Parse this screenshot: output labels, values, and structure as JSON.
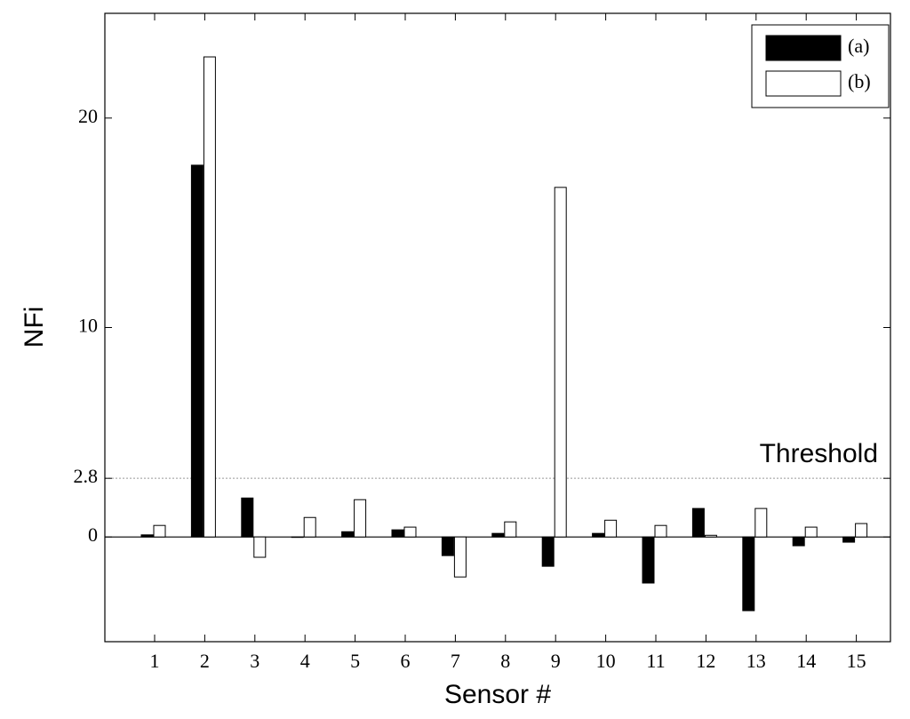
{
  "chart_data": {
    "type": "bar",
    "x_label": "Sensor #",
    "y_label": "NFi",
    "categories": [
      "1",
      "2",
      "3",
      "4",
      "5",
      "6",
      "7",
      "8",
      "9",
      "10",
      "11",
      "12",
      "13",
      "14",
      "15"
    ],
    "series": [
      {
        "name": "(a)",
        "color": "#000000",
        "values": [
          0.1,
          17.75,
          1.86,
          0,
          0.25,
          0.34,
          -0.89,
          0.17,
          -1.4,
          0.17,
          -2.2,
          1.36,
          -3.52,
          -0.42,
          -0.25
        ]
      },
      {
        "name": "(b)",
        "color": "#ffffff",
        "values": [
          0.55,
          22.92,
          -0.97,
          0.93,
          1.78,
          0.47,
          -1.91,
          0.72,
          16.69,
          0.8,
          0.55,
          0.08,
          1.36,
          0.47,
          0.64
        ]
      }
    ],
    "ylim": [
      -5,
      25
    ],
    "yticks": [
      0,
      2.8,
      10,
      20
    ],
    "threshold": 2.8,
    "threshold_label": "Threshold",
    "legend": "upper right"
  }
}
